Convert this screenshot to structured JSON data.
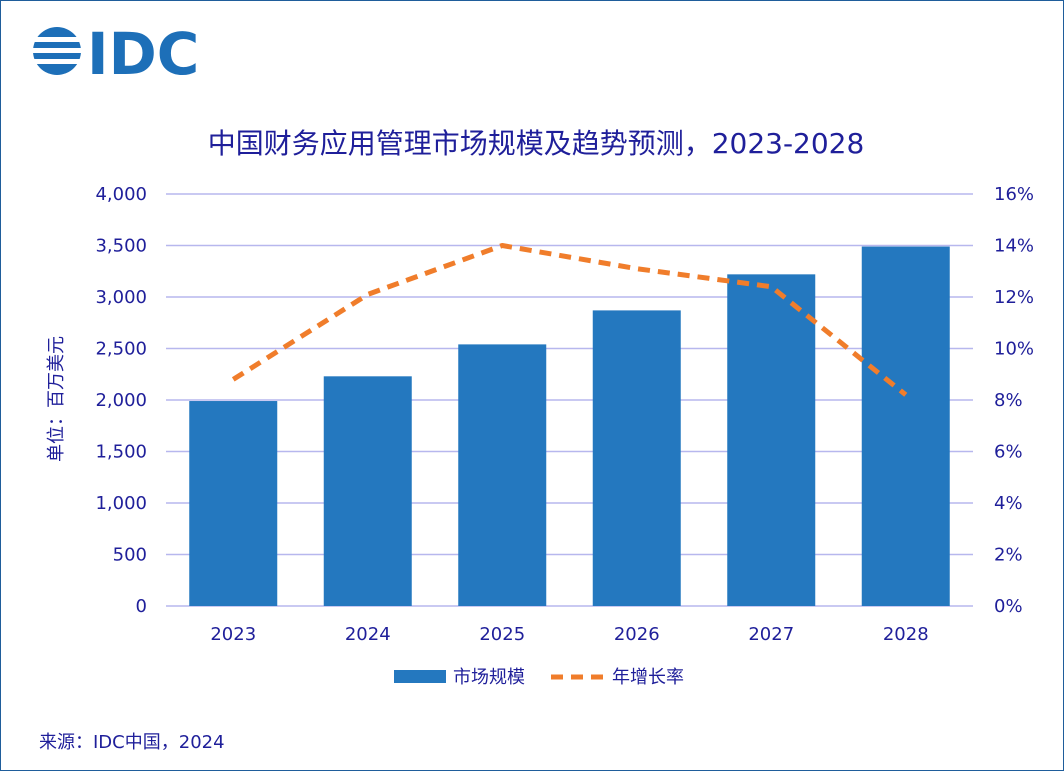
{
  "logo": {
    "text": "IDC"
  },
  "chart_data": {
    "type": "bar",
    "title": "中国财务应用管理市场规模及趋势预测，2023-2028",
    "categories": [
      "2023",
      "2024",
      "2025",
      "2026",
      "2027",
      "2028"
    ],
    "series": [
      {
        "name": "市场规模",
        "type": "bar",
        "values": [
          1990,
          2230,
          2540,
          2870,
          3220,
          3490
        ],
        "axis": "left",
        "color": "#2478bf"
      },
      {
        "name": "年增长率",
        "type": "line",
        "values": [
          8.8,
          12.1,
          14.0,
          13.1,
          12.4,
          8.2
        ],
        "axis": "right",
        "color": "#f07d2b"
      }
    ],
    "ylabel": "单位：百万美元",
    "ylim": [
      0,
      4000
    ],
    "y2lim": [
      0,
      16
    ],
    "yticks": [
      "0",
      "500",
      "1,000",
      "1,500",
      "2,000",
      "2,500",
      "3,000",
      "3,500",
      "4,000"
    ],
    "y2ticks": [
      "0%",
      "2%",
      "4%",
      "6%",
      "8%",
      "10%",
      "12%",
      "14%",
      "16%"
    ],
    "grid": true,
    "legend_position": "bottom-center"
  },
  "source": "来源：IDC中国，2024"
}
